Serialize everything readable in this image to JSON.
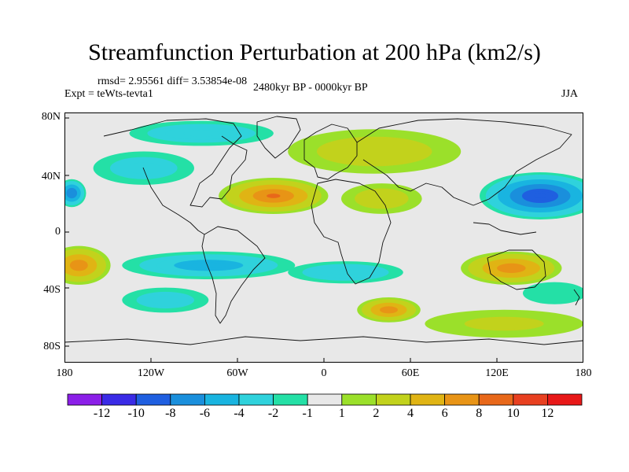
{
  "chart_data": {
    "type": "heatmap",
    "title": "Streamfunction Perturbation at 200 hPa (km2/s)",
    "stats_label": "rmsd= 2.95561 diff= 3.53854e-08",
    "expt_label": "Expt = teWts-tevta1",
    "period_label": "2480kyr BP - 0000kyr BP",
    "season_label": "JJA",
    "x_axis": {
      "range": [
        -180,
        180
      ],
      "ticks": [
        -180,
        -120,
        -60,
        0,
        60,
        120,
        180
      ],
      "tick_labels": [
        "180",
        "120W",
        "60W",
        "0",
        "60E",
        "120E",
        "180"
      ]
    },
    "y_axis": {
      "range": [
        -90,
        90
      ],
      "ticks": [
        80,
        40,
        0,
        -40,
        -80
      ],
      "tick_labels": [
        "80N",
        "40N",
        "0",
        "40S",
        "80S"
      ]
    },
    "colorbar": {
      "levels": [
        "-12",
        "-10",
        "-8",
        "-6",
        "-4",
        "-2",
        "-1",
        "1",
        "2",
        "4",
        "6",
        "8",
        "10",
        "12"
      ],
      "colors": [
        "#8b1fe8",
        "#3a2be6",
        "#1f5fe0",
        "#1a8fdc",
        "#19b4e0",
        "#2fd2dc",
        "#24e0a6",
        "#e8e8e8",
        "#9be02a",
        "#c2d21c",
        "#e0b414",
        "#e89416",
        "#e8681a",
        "#e84020",
        "#e81818"
      ]
    },
    "anomaly_centers": [
      {
        "lon": -175,
        "lat": 32,
        "value": -8,
        "rx": 10,
        "ry": 10
      },
      {
        "lon": -125,
        "lat": 50,
        "value": -3,
        "rx": 35,
        "ry": 12
      },
      {
        "lon": -85,
        "lat": 75,
        "value": -4,
        "rx": 50,
        "ry": 9
      },
      {
        "lon": -35,
        "lat": 30,
        "value": 8,
        "rx": 38,
        "ry": 13
      },
      {
        "lon": 40,
        "lat": 28,
        "value": 3,
        "rx": 28,
        "ry": 11
      },
      {
        "lon": 35,
        "lat": 62,
        "value": 3,
        "rx": 60,
        "ry": 16
      },
      {
        "lon": 150,
        "lat": 30,
        "value": -10,
        "rx": 42,
        "ry": 17
      },
      {
        "lon": -170,
        "lat": -20,
        "value": 7,
        "rx": 22,
        "ry": 14
      },
      {
        "lon": -80,
        "lat": -20,
        "value": -5,
        "rx": 60,
        "ry": 10
      },
      {
        "lon": 15,
        "lat": -25,
        "value": -4,
        "rx": 40,
        "ry": 8
      },
      {
        "lon": -110,
        "lat": -45,
        "value": -3,
        "rx": 30,
        "ry": 9
      },
      {
        "lon": 45,
        "lat": -52,
        "value": 7,
        "rx": 22,
        "ry": 9
      },
      {
        "lon": 130,
        "lat": -22,
        "value": 7,
        "rx": 35,
        "ry": 12
      },
      {
        "lon": 125,
        "lat": -62,
        "value": 2,
        "rx": 55,
        "ry": 10
      },
      {
        "lon": 160,
        "lat": -40,
        "value": -2,
        "rx": 22,
        "ry": 8
      }
    ]
  }
}
